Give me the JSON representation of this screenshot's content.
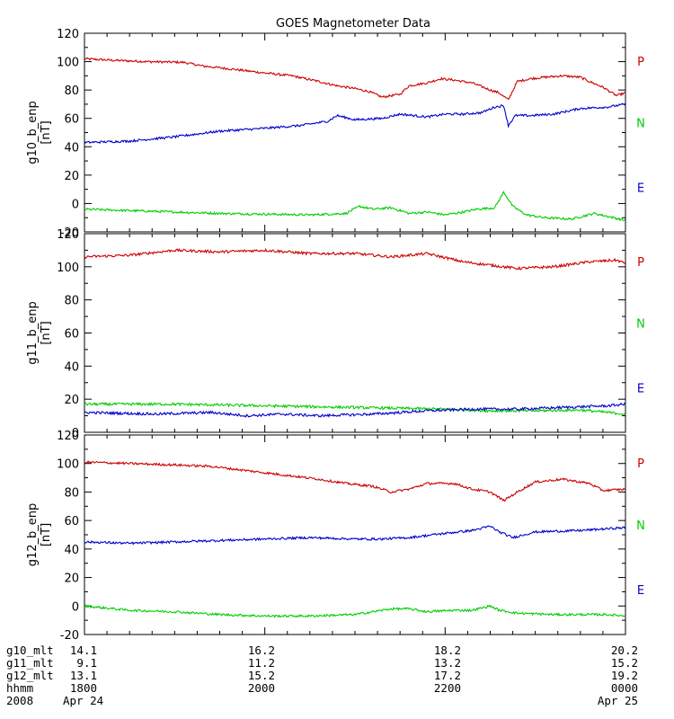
{
  "chart_data": {
    "type": "line",
    "title": "GOES Magnetometer Data",
    "x_axis": {
      "start": "1800",
      "end": "0000",
      "major_ticks": [
        "1800",
        "2000",
        "2200",
        "0000"
      ],
      "rows": [
        {
          "label": "g10_mlt",
          "values": [
            "14.1",
            "16.2",
            "18.2",
            "20.2"
          ]
        },
        {
          "label": "g11_mlt",
          "values": [
            "9.1",
            "11.2",
            "13.2",
            "15.2"
          ]
        },
        {
          "label": "g12_mlt",
          "values": [
            "13.1",
            "15.2",
            "17.2",
            "19.2"
          ]
        },
        {
          "label": "hhmm",
          "values": [
            "1800",
            "2000",
            "2200",
            "0000"
          ]
        },
        {
          "label": "2008",
          "values": [
            "Apr 24",
            "",
            "",
            "Apr 25"
          ]
        }
      ]
    },
    "panels": [
      {
        "ylabel": "g10_b_enp",
        "unit": "[nT]",
        "ylim": [
          -20,
          120
        ],
        "yticks": [
          -20,
          0,
          20,
          40,
          60,
          80,
          100,
          120
        ],
        "series": [
          {
            "name": "P",
            "color": "#cc0000",
            "points": [
              [
                0,
                102
              ],
              [
                0.3,
                101
              ],
              [
                0.7,
                100
              ],
              [
                1.1,
                99.5
              ],
              [
                1.3,
                97
              ],
              [
                1.6,
                95
              ],
              [
                2,
                92
              ],
              [
                2.3,
                90
              ],
              [
                2.6,
                86
              ],
              [
                2.8,
                83
              ],
              [
                3.0,
                81
              ],
              [
                3.15,
                79
              ],
              [
                3.3,
                75
              ],
              [
                3.5,
                77
              ],
              [
                3.6,
                83
              ],
              [
                3.8,
                85
              ],
              [
                3.95,
                88
              ],
              [
                4.1,
                87
              ],
              [
                4.3,
                85
              ],
              [
                4.5,
                80
              ],
              [
                4.6,
                78
              ],
              [
                4.7,
                73
              ],
              [
                4.8,
                86
              ],
              [
                4.95,
                88
              ],
              [
                5.1,
                89
              ],
              [
                5.3,
                90
              ],
              [
                5.5,
                89
              ],
              [
                5.6,
                86
              ],
              [
                5.75,
                82
              ],
              [
                5.9,
                76
              ],
              [
                6,
                78
              ]
            ]
          },
          {
            "name": "N",
            "color": "#00cc00",
            "points": [
              [
                0,
                -4
              ],
              [
                0.5,
                -5
              ],
              [
                1,
                -6
              ],
              [
                1.5,
                -7
              ],
              [
                2,
                -7.5
              ],
              [
                2.5,
                -8
              ],
              [
                2.9,
                -7
              ],
              [
                3.05,
                -2
              ],
              [
                3.2,
                -4
              ],
              [
                3.4,
                -3
              ],
              [
                3.6,
                -7
              ],
              [
                3.8,
                -6
              ],
              [
                4,
                -8
              ],
              [
                4.2,
                -6
              ],
              [
                4.35,
                -4
              ],
              [
                4.55,
                -3
              ],
              [
                4.65,
                8
              ],
              [
                4.75,
                -2
              ],
              [
                4.9,
                -8
              ],
              [
                5.1,
                -10
              ],
              [
                5.4,
                -11
              ],
              [
                5.65,
                -7
              ],
              [
                5.8,
                -9
              ],
              [
                6,
                -12
              ]
            ]
          },
          {
            "name": "E",
            "color": "#0000cc",
            "points": [
              [
                0,
                43
              ],
              [
                0.5,
                44
              ],
              [
                1,
                47
              ],
              [
                1.5,
                51
              ],
              [
                2,
                53
              ],
              [
                2.4,
                55
              ],
              [
                2.7,
                58
              ],
              [
                2.8,
                62
              ],
              [
                3,
                59
              ],
              [
                3.3,
                60
              ],
              [
                3.5,
                63
              ],
              [
                3.8,
                61
              ],
              [
                4,
                63
              ],
              [
                4.2,
                63
              ],
              [
                4.4,
                64
              ],
              [
                4.55,
                68
              ],
              [
                4.65,
                69
              ],
              [
                4.7,
                55
              ],
              [
                4.78,
                62
              ],
              [
                4.95,
                62
              ],
              [
                5.2,
                63
              ],
              [
                5.5,
                67
              ],
              [
                5.8,
                68
              ],
              [
                6,
                70
              ]
            ]
          }
        ]
      },
      {
        "ylabel": "g11_b_enp",
        "unit": "[nT]",
        "ylim": [
          0,
          120
        ],
        "yticks": [
          0,
          20,
          40,
          60,
          80,
          100,
          120
        ],
        "series": [
          {
            "name": "P",
            "color": "#cc0000",
            "points": [
              [
                0,
                106
              ],
              [
                0.5,
                107
              ],
              [
                1,
                110
              ],
              [
                1.5,
                109
              ],
              [
                2,
                110
              ],
              [
                2.5,
                108
              ],
              [
                3,
                108
              ],
              [
                3.4,
                106
              ],
              [
                3.8,
                108
              ],
              [
                4.2,
                103
              ],
              [
                4.5,
                101
              ],
              [
                4.8,
                99
              ],
              [
                5.2,
                100
              ],
              [
                5.6,
                103
              ],
              [
                5.9,
                104
              ],
              [
                6,
                102
              ]
            ]
          },
          {
            "name": "N",
            "color": "#00cc00",
            "points": [
              [
                0,
                17
              ],
              [
                1,
                17
              ],
              [
                2,
                16
              ],
              [
                3,
                15
              ],
              [
                4,
                14
              ],
              [
                4.5,
                13
              ],
              [
                5,
                13
              ],
              [
                5.5,
                13.5
              ],
              [
                6,
                11
              ]
            ]
          },
          {
            "name": "E",
            "color": "#0000cc",
            "points": [
              [
                0,
                12
              ],
              [
                0.8,
                11
              ],
              [
                1.4,
                12
              ],
              [
                1.8,
                10
              ],
              [
                2.2,
                11
              ],
              [
                2.6,
                10
              ],
              [
                3.2,
                11
              ],
              [
                3.8,
                13
              ],
              [
                4.3,
                14
              ],
              [
                4.8,
                14
              ],
              [
                5.3,
                15
              ],
              [
                5.8,
                16
              ],
              [
                6,
                17
              ]
            ]
          }
        ]
      },
      {
        "ylabel": "g12_b_enp",
        "unit": "[nT]",
        "ylim": [
          -20,
          120
        ],
        "yticks": [
          -20,
          0,
          20,
          40,
          60,
          80,
          100,
          120
        ],
        "series": [
          {
            "name": "P",
            "color": "#cc0000",
            "points": [
              [
                0,
                101
              ],
              [
                0.5,
                100
              ],
              [
                1,
                99
              ],
              [
                1.4,
                98
              ],
              [
                1.8,
                95
              ],
              [
                2.2,
                92
              ],
              [
                2.6,
                89
              ],
              [
                2.9,
                86
              ],
              [
                3.2,
                84
              ],
              [
                3.4,
                80
              ],
              [
                3.6,
                82
              ],
              [
                3.8,
                86
              ],
              [
                4.1,
                86
              ],
              [
                4.3,
                82
              ],
              [
                4.5,
                80
              ],
              [
                4.65,
                74
              ],
              [
                4.8,
                80
              ],
              [
                5,
                87
              ],
              [
                5.3,
                89
              ],
              [
                5.6,
                86
              ],
              [
                5.75,
                81
              ],
              [
                6,
                82
              ]
            ]
          },
          {
            "name": "N",
            "color": "#00cc00",
            "points": [
              [
                0,
                0
              ],
              [
                0.5,
                -3
              ],
              [
                1,
                -4
              ],
              [
                1.5,
                -6
              ],
              [
                2,
                -7
              ],
              [
                2.5,
                -7
              ],
              [
                3,
                -6
              ],
              [
                3.2,
                -4
              ],
              [
                3.4,
                -2
              ],
              [
                3.6,
                -2
              ],
              [
                3.8,
                -4
              ],
              [
                4.1,
                -3
              ],
              [
                4.3,
                -3
              ],
              [
                4.5,
                0
              ],
              [
                4.6,
                -3
              ],
              [
                4.8,
                -5
              ],
              [
                5.2,
                -6
              ],
              [
                5.5,
                -6
              ],
              [
                5.8,
                -6
              ],
              [
                6,
                -7
              ]
            ]
          },
          {
            "name": "E",
            "color": "#0000cc",
            "points": [
              [
                0,
                45
              ],
              [
                0.5,
                44
              ],
              [
                1,
                45
              ],
              [
                1.5,
                46
              ],
              [
                2,
                47
              ],
              [
                2.5,
                48
              ],
              [
                3,
                47
              ],
              [
                3.3,
                47
              ],
              [
                3.6,
                48
              ],
              [
                4,
                51
              ],
              [
                4.3,
                53
              ],
              [
                4.5,
                56
              ],
              [
                4.6,
                52
              ],
              [
                4.75,
                48
              ],
              [
                5,
                52
              ],
              [
                5.5,
                53
              ],
              [
                6,
                55
              ]
            ]
          }
        ]
      }
    ]
  }
}
